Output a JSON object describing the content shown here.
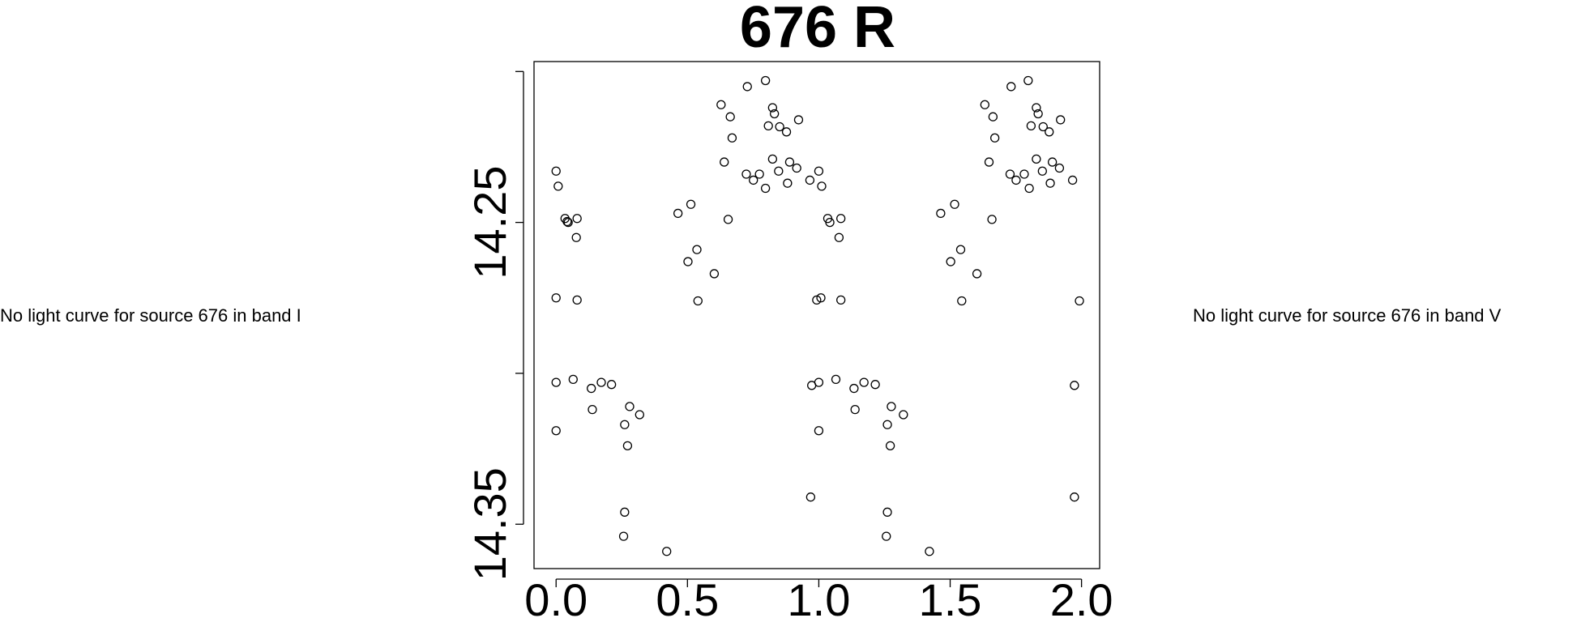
{
  "chart_data": {
    "type": "scatter",
    "title": "676 R",
    "x": [
      0.0,
      0.008,
      0.034,
      0.042,
      0.046,
      0.08,
      0.077,
      0.0,
      0.08,
      0.0,
      0.065,
      0.134,
      0.172,
      0.211,
      0.138,
      0.0,
      0.28,
      0.261,
      0.318,
      0.272,
      0.261,
      0.257,
      0.421,
      0.464,
      0.513,
      0.502,
      0.536,
      0.602,
      0.54,
      0.628,
      0.663,
      0.64,
      0.67,
      0.655,
      0.728,
      0.797,
      0.724,
      0.751,
      0.774,
      0.797,
      0.808,
      0.824,
      0.831,
      0.851,
      0.824,
      0.847,
      0.877,
      0.889,
      0.881,
      0.916,
      0.923,
      0.966,
      1.0,
      1.011,
      1.034,
      1.042,
      1.084,
      1.077,
      0.992,
      1.008,
      1.084,
      0.973,
      1.0,
      1.065,
      1.134,
      1.172,
      1.215,
      1.138,
      1.0,
      1.276,
      1.261,
      1.322,
      1.272,
      1.261,
      1.257,
      0.969,
      1.421,
      1.464,
      1.517,
      1.502,
      1.54,
      1.602,
      1.544,
      1.632,
      1.663,
      1.67,
      1.648,
      1.659,
      1.732,
      1.797,
      1.728,
      1.751,
      1.782,
      1.801,
      1.808,
      1.828,
      1.835,
      1.854,
      1.828,
      1.851,
      1.877,
      1.881,
      1.889,
      1.92,
      1.916,
      1.966,
      1.992,
      1.973,
      1.973
    ],
    "values": [
      14.233,
      14.238,
      14.2487,
      14.2497,
      14.25,
      14.2487,
      14.255,
      14.275,
      14.2757,
      14.303,
      14.302,
      14.305,
      14.303,
      14.3037,
      14.312,
      14.319,
      14.311,
      14.317,
      14.3137,
      14.324,
      14.346,
      14.354,
      14.359,
      14.247,
      14.244,
      14.263,
      14.259,
      14.267,
      14.276,
      14.211,
      14.215,
      14.23,
      14.222,
      14.249,
      14.205,
      14.203,
      14.234,
      14.236,
      14.234,
      14.2387,
      14.218,
      14.212,
      14.214,
      14.2183,
      14.229,
      14.233,
      14.22,
      14.23,
      14.237,
      14.232,
      14.216,
      14.236,
      14.233,
      14.238,
      14.2487,
      14.25,
      14.2487,
      14.255,
      14.2757,
      14.275,
      14.2757,
      14.304,
      14.303,
      14.302,
      14.305,
      14.303,
      14.3037,
      14.312,
      14.319,
      14.311,
      14.317,
      14.3137,
      14.324,
      14.346,
      14.354,
      14.341,
      14.359,
      14.247,
      14.244,
      14.263,
      14.259,
      14.267,
      14.276,
      14.211,
      14.215,
      14.222,
      14.23,
      14.249,
      14.205,
      14.203,
      14.234,
      14.236,
      14.234,
      14.2387,
      14.218,
      14.212,
      14.214,
      14.2183,
      14.229,
      14.233,
      14.22,
      14.237,
      14.23,
      14.216,
      14.232,
      14.236,
      14.276,
      14.304,
      14.341
    ],
    "xlim": [
      -0.084,
      2.069
    ],
    "xticks": [
      {
        "value": 0,
        "label": "0.0"
      },
      0.5,
      {
        "value": 1,
        "label": "1.0"
      },
      1.5,
      {
        "value": 2,
        "label": "2.0"
      }
    ],
    "ylim": [
      14.3647,
      14.1967
    ],
    "yticks": [
      {
        "value": 14.2,
        "label": null
      },
      14.25,
      {
        "value": 14.3,
        "label": null
      },
      14.35
    ]
  },
  "messages": [
    "No light curve for source 676 in band I",
    "No light curve for source 676 in band V"
  ]
}
